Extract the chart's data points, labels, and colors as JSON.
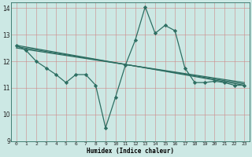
{
  "xlabel": "Humidex (Indice chaleur)",
  "bg_color": "#cce8e4",
  "grid_color": "#b0b0b0",
  "line_color": "#2e6e62",
  "xlim": [
    -0.5,
    23.5
  ],
  "ylim": [
    9,
    14.2
  ],
  "yticks": [
    9,
    10,
    11,
    12,
    13,
    14
  ],
  "xticks": [
    0,
    1,
    2,
    3,
    4,
    5,
    6,
    7,
    8,
    9,
    10,
    11,
    12,
    13,
    14,
    15,
    16,
    17,
    18,
    19,
    20,
    21,
    22,
    23
  ],
  "series": {
    "line_main": {
      "x": [
        0,
        1,
        2,
        3,
        4,
        5,
        6,
        7,
        8,
        9,
        10,
        11,
        12,
        13,
        14,
        15,
        16,
        17,
        18,
        19,
        20,
        21,
        22,
        23
      ],
      "y": [
        12.6,
        12.4,
        12.0,
        11.75,
        11.5,
        11.2,
        11.5,
        11.5,
        11.1,
        9.5,
        10.65,
        11.85,
        12.8,
        14.05,
        13.05,
        13.35,
        13.15,
        11.75,
        11.2,
        11.2,
        11.25,
        11.2,
        11.1,
        11.1
      ]
    },
    "line2": {
      "x": [
        0,
        23
      ],
      "y": [
        12.6,
        11.1
      ]
    },
    "line3": {
      "x": [
        0,
        23
      ],
      "y": [
        12.55,
        11.15
      ]
    },
    "line4": {
      "x": [
        0,
        23
      ],
      "y": [
        12.5,
        11.2
      ]
    }
  }
}
